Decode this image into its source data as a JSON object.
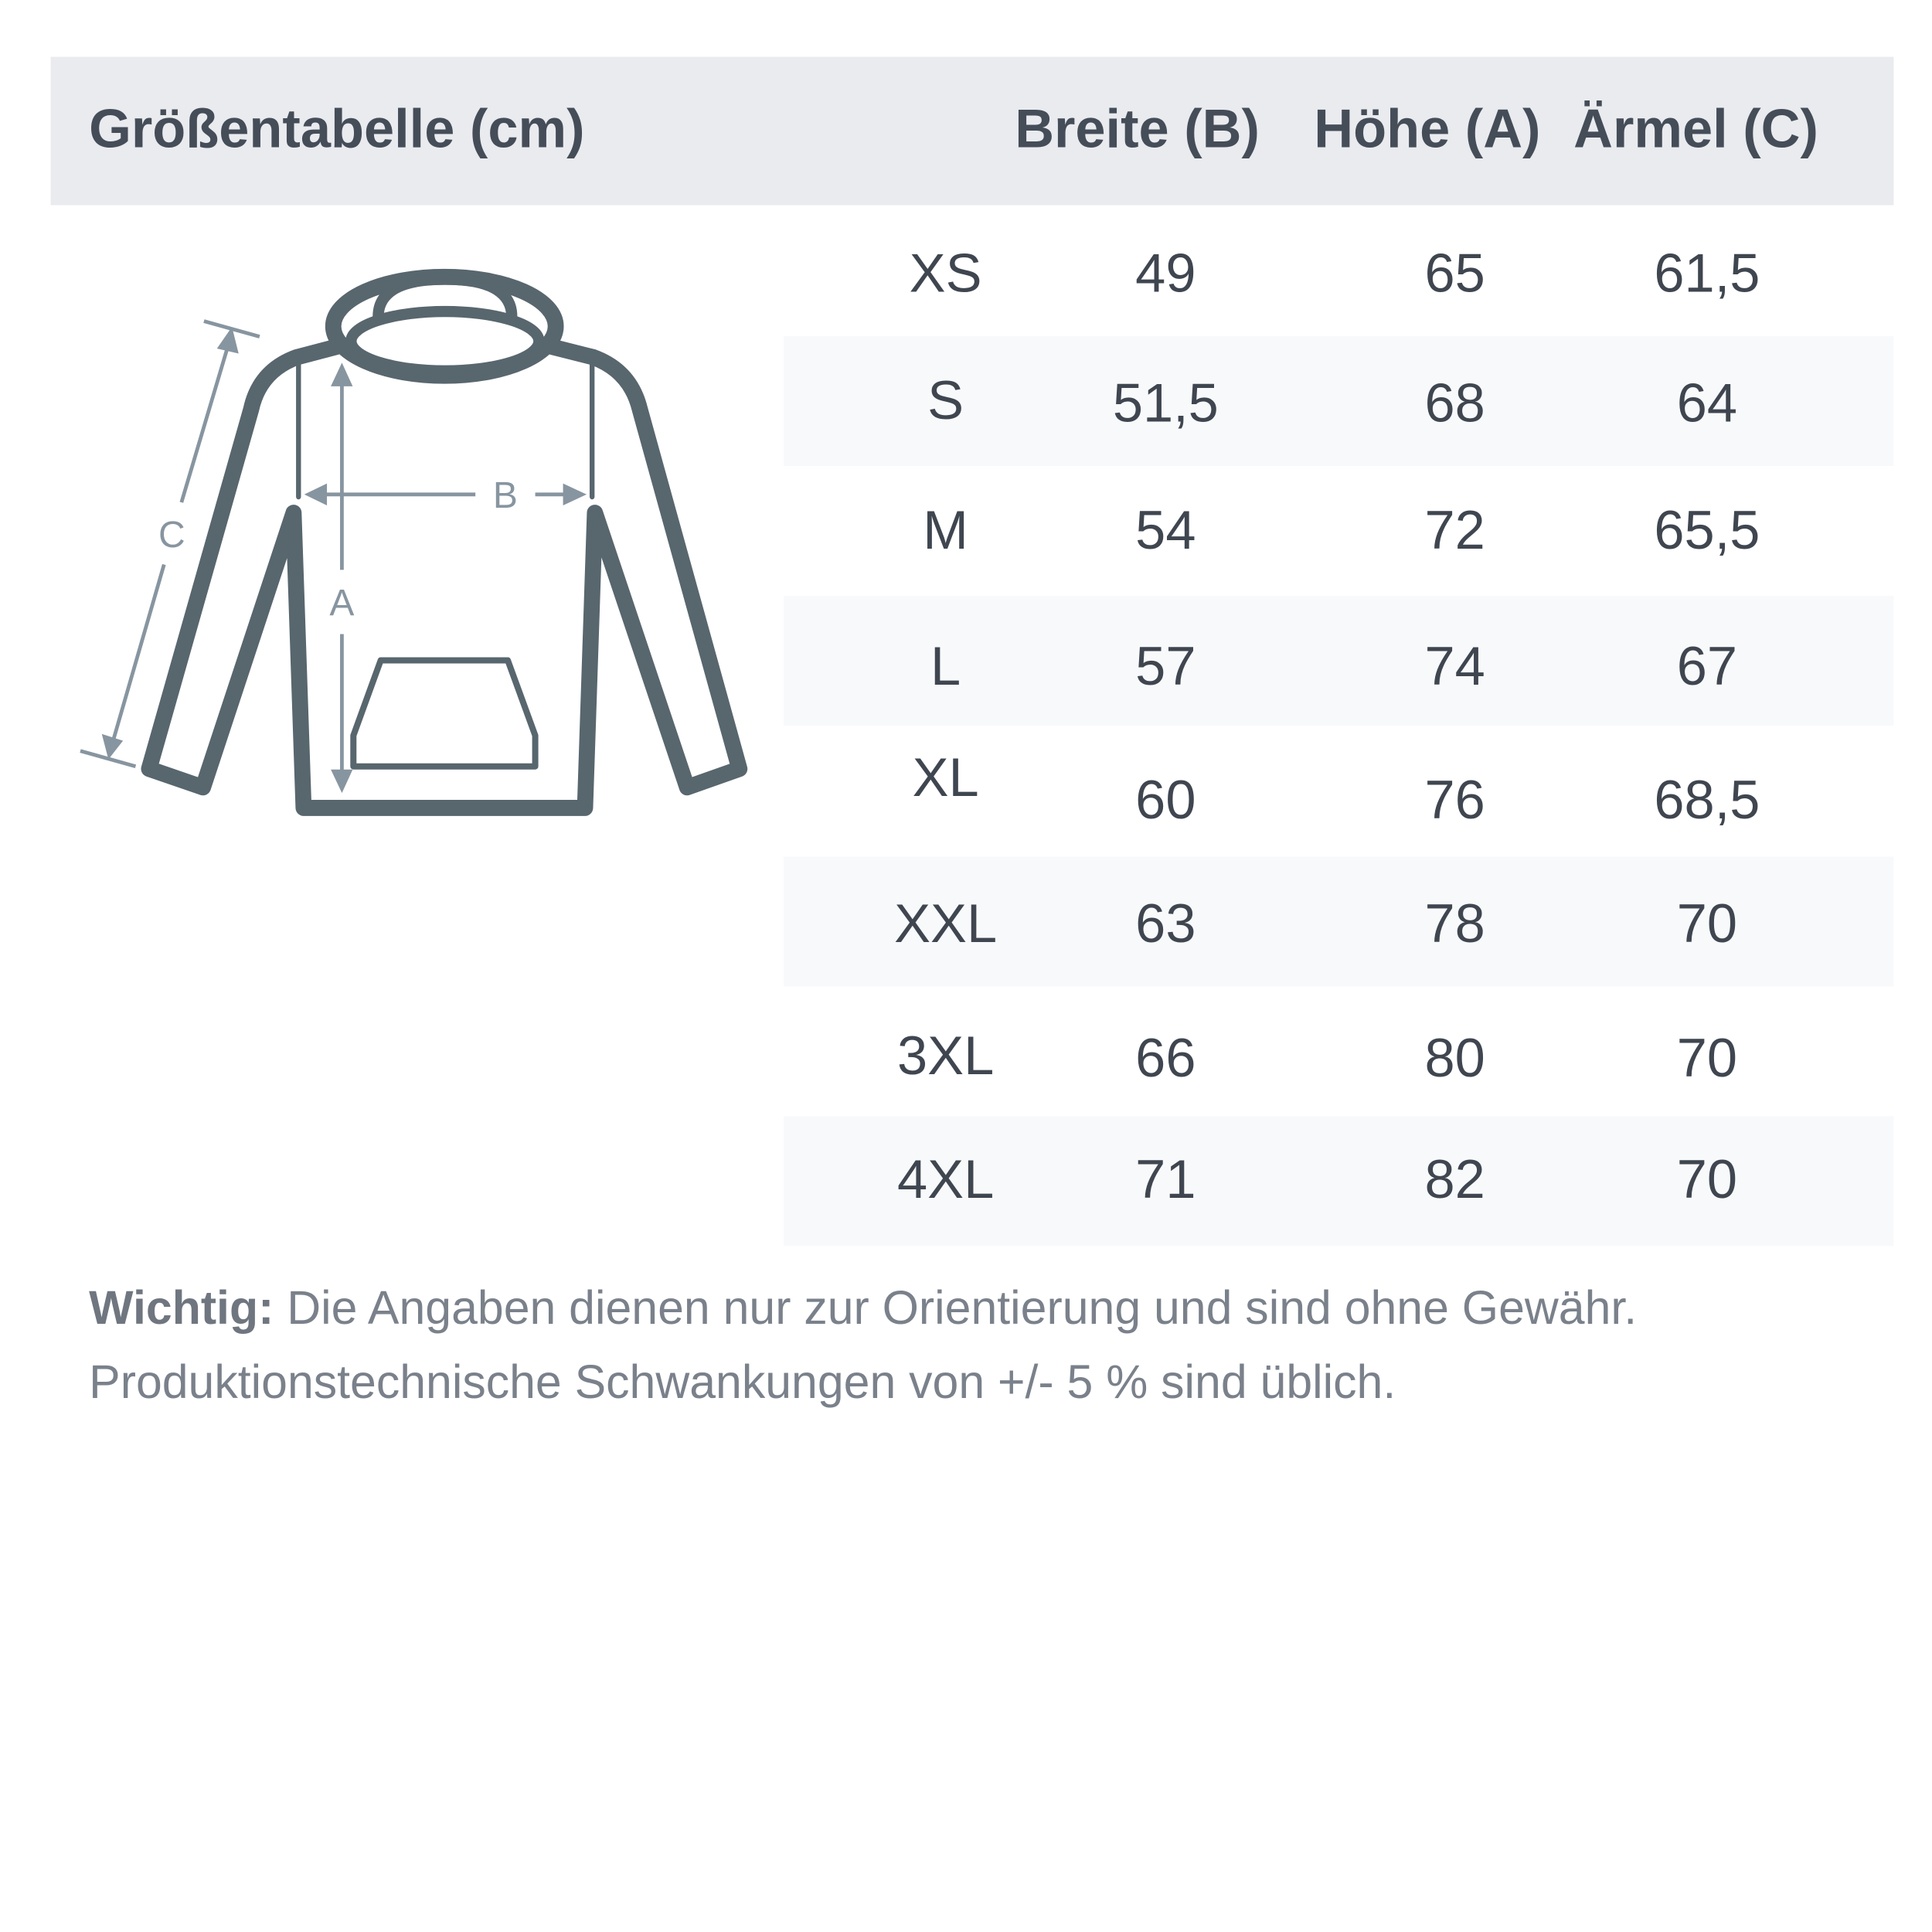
{
  "header": {
    "title": "Größentabelle (cm)",
    "columns": [
      "Breite (B)",
      "Höhe (A)",
      "Ärmel (C)"
    ]
  },
  "diagram": {
    "labels": {
      "a": "A",
      "b": "B",
      "c": "C"
    },
    "colors": {
      "outline": "#58666e",
      "measure": "#8795a0"
    }
  },
  "rows": [
    {
      "size": "XS",
      "breite": "49",
      "hoehe": "65",
      "aermel": "61,5"
    },
    {
      "size": "S",
      "breite": "51,5",
      "hoehe": "68",
      "aermel": "64"
    },
    {
      "size": "M",
      "breite": "54",
      "hoehe": "72",
      "aermel": "65,5"
    },
    {
      "size": "L",
      "breite": "57",
      "hoehe": "74",
      "aermel": "67"
    },
    {
      "size": "XL",
      "breite": "60",
      "hoehe": "76",
      "aermel": "68,5"
    },
    {
      "size": "XXL",
      "breite": "63",
      "hoehe": "78",
      "aermel": "70"
    },
    {
      "size": "3XL",
      "breite": "66",
      "hoehe": "80",
      "aermel": "70"
    },
    {
      "size": "4XL",
      "breite": "71",
      "hoehe": "82",
      "aermel": "70"
    }
  ],
  "note": {
    "label": "Wichtig:",
    "line1": " Die Angaben dienen nur zur Orientierung und sind ohne Gewähr.",
    "line2": "Produktionstechnische Schwankungen von +/- 5 % sind üblich."
  },
  "colors": {
    "header_bg": "#e9ebef",
    "row_alt_bg": "#f8f9fb",
    "text": "#3f4650",
    "note": "#7a818b"
  }
}
